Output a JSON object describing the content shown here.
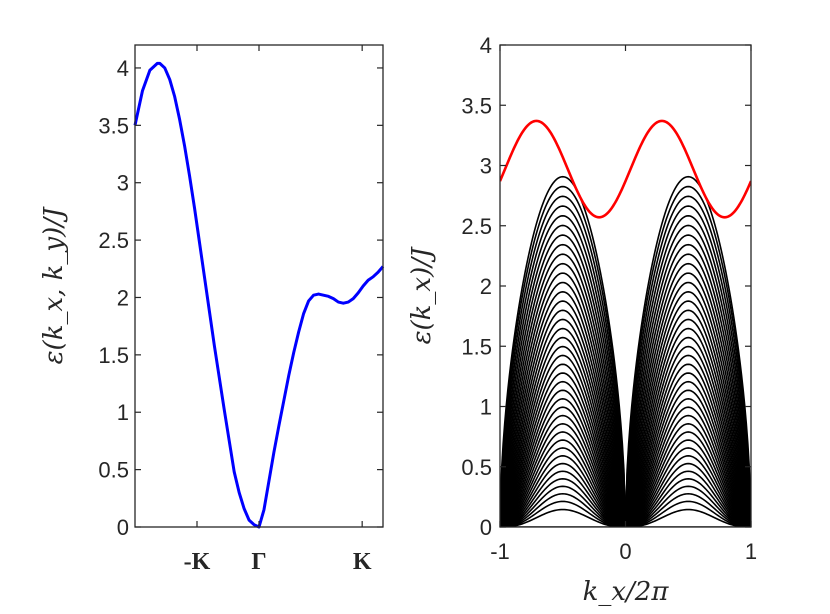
{
  "chart_data": [
    {
      "type": "line",
      "panel": "left",
      "title": "",
      "xlabel": "",
      "ylabel": "ε(k_x, k_y)/J",
      "ylim": [
        0,
        4.2
      ],
      "yticks": [
        0,
        0.5,
        1,
        1.5,
        2,
        2.5,
        3,
        3.5,
        4
      ],
      "ytick_labels": [
        "0",
        "0.5",
        "1",
        "1.5",
        "2",
        "2.5",
        "3",
        "3.5",
        "4"
      ],
      "xlim": [
        0,
        1
      ],
      "xticks": [
        0.25,
        0.5,
        0.916
      ],
      "xtick_labels": [
        "-K",
        "Γ",
        "K"
      ],
      "grid": false,
      "series": [
        {
          "name": "band",
          "color": "#0000ff",
          "x": [
            0.0,
            0.03,
            0.06,
            0.09,
            0.1,
            0.12,
            0.14,
            0.16,
            0.18,
            0.2,
            0.22,
            0.24,
            0.26,
            0.28,
            0.3,
            0.32,
            0.34,
            0.36,
            0.38,
            0.4,
            0.42,
            0.44,
            0.46,
            0.48,
            0.5,
            0.52,
            0.54,
            0.56,
            0.58,
            0.6,
            0.62,
            0.64,
            0.66,
            0.68,
            0.7,
            0.72,
            0.74,
            0.76,
            0.78,
            0.8,
            0.82,
            0.84,
            0.86,
            0.88,
            0.9,
            0.92,
            0.94,
            0.96,
            0.98,
            1.0
          ],
          "y": [
            3.5,
            3.8,
            3.98,
            4.04,
            4.04,
            4.0,
            3.9,
            3.75,
            3.55,
            3.32,
            3.06,
            2.78,
            2.48,
            2.18,
            1.88,
            1.58,
            1.3,
            1.02,
            0.75,
            0.48,
            0.3,
            0.16,
            0.06,
            0.02,
            0.0,
            0.15,
            0.4,
            0.65,
            0.88,
            1.1,
            1.32,
            1.52,
            1.7,
            1.86,
            1.97,
            2.02,
            2.03,
            2.02,
            2.01,
            1.99,
            1.96,
            1.95,
            1.96,
            1.99,
            2.04,
            2.1,
            2.15,
            2.18,
            2.22,
            2.27
          ]
        }
      ]
    },
    {
      "type": "line",
      "panel": "right",
      "title": "",
      "xlabel": "k_x/2π",
      "ylabel": "ε(k_x)/J",
      "xlim": [
        -1,
        1
      ],
      "xticks": [
        -1,
        0,
        1
      ],
      "xtick_labels": [
        "-1",
        "0",
        "1"
      ],
      "ylim": [
        0,
        4
      ],
      "yticks": [
        0,
        0.5,
        1,
        1.5,
        2,
        2.5,
        3,
        3.5,
        4
      ],
      "ytick_labels": [
        "0",
        "0.5",
        "1",
        "1.5",
        "2",
        "2.5",
        "3",
        "3.5",
        "4"
      ],
      "grid": false,
      "series": [
        {
          "name": "edge band (upper envelope)",
          "color": "#ff0000",
          "description_model": "A + B*cos(2*pi*(x-0.29))",
          "x": [
            -1.0,
            -0.9,
            -0.8,
            -0.71,
            -0.6,
            -0.5,
            -0.4,
            -0.3,
            -0.21,
            -0.1,
            0.0,
            0.1,
            0.2,
            0.29,
            0.4,
            0.5,
            0.6,
            0.7,
            0.79,
            0.9,
            1.0
          ],
          "y": [
            2.82,
            3.16,
            3.33,
            3.37,
            3.31,
            3.15,
            2.95,
            2.73,
            2.57,
            2.59,
            2.82,
            3.07,
            3.3,
            3.37,
            3.3,
            3.15,
            2.93,
            2.72,
            2.57,
            2.6,
            2.82
          ]
        },
        {
          "name": "bulk bands",
          "color": "#000000",
          "count": 40,
          "min_envelope": "0 at k_x = -1, 0, 1",
          "max_envelope": "2.85 at k_x = ±0.5"
        }
      ]
    }
  ]
}
